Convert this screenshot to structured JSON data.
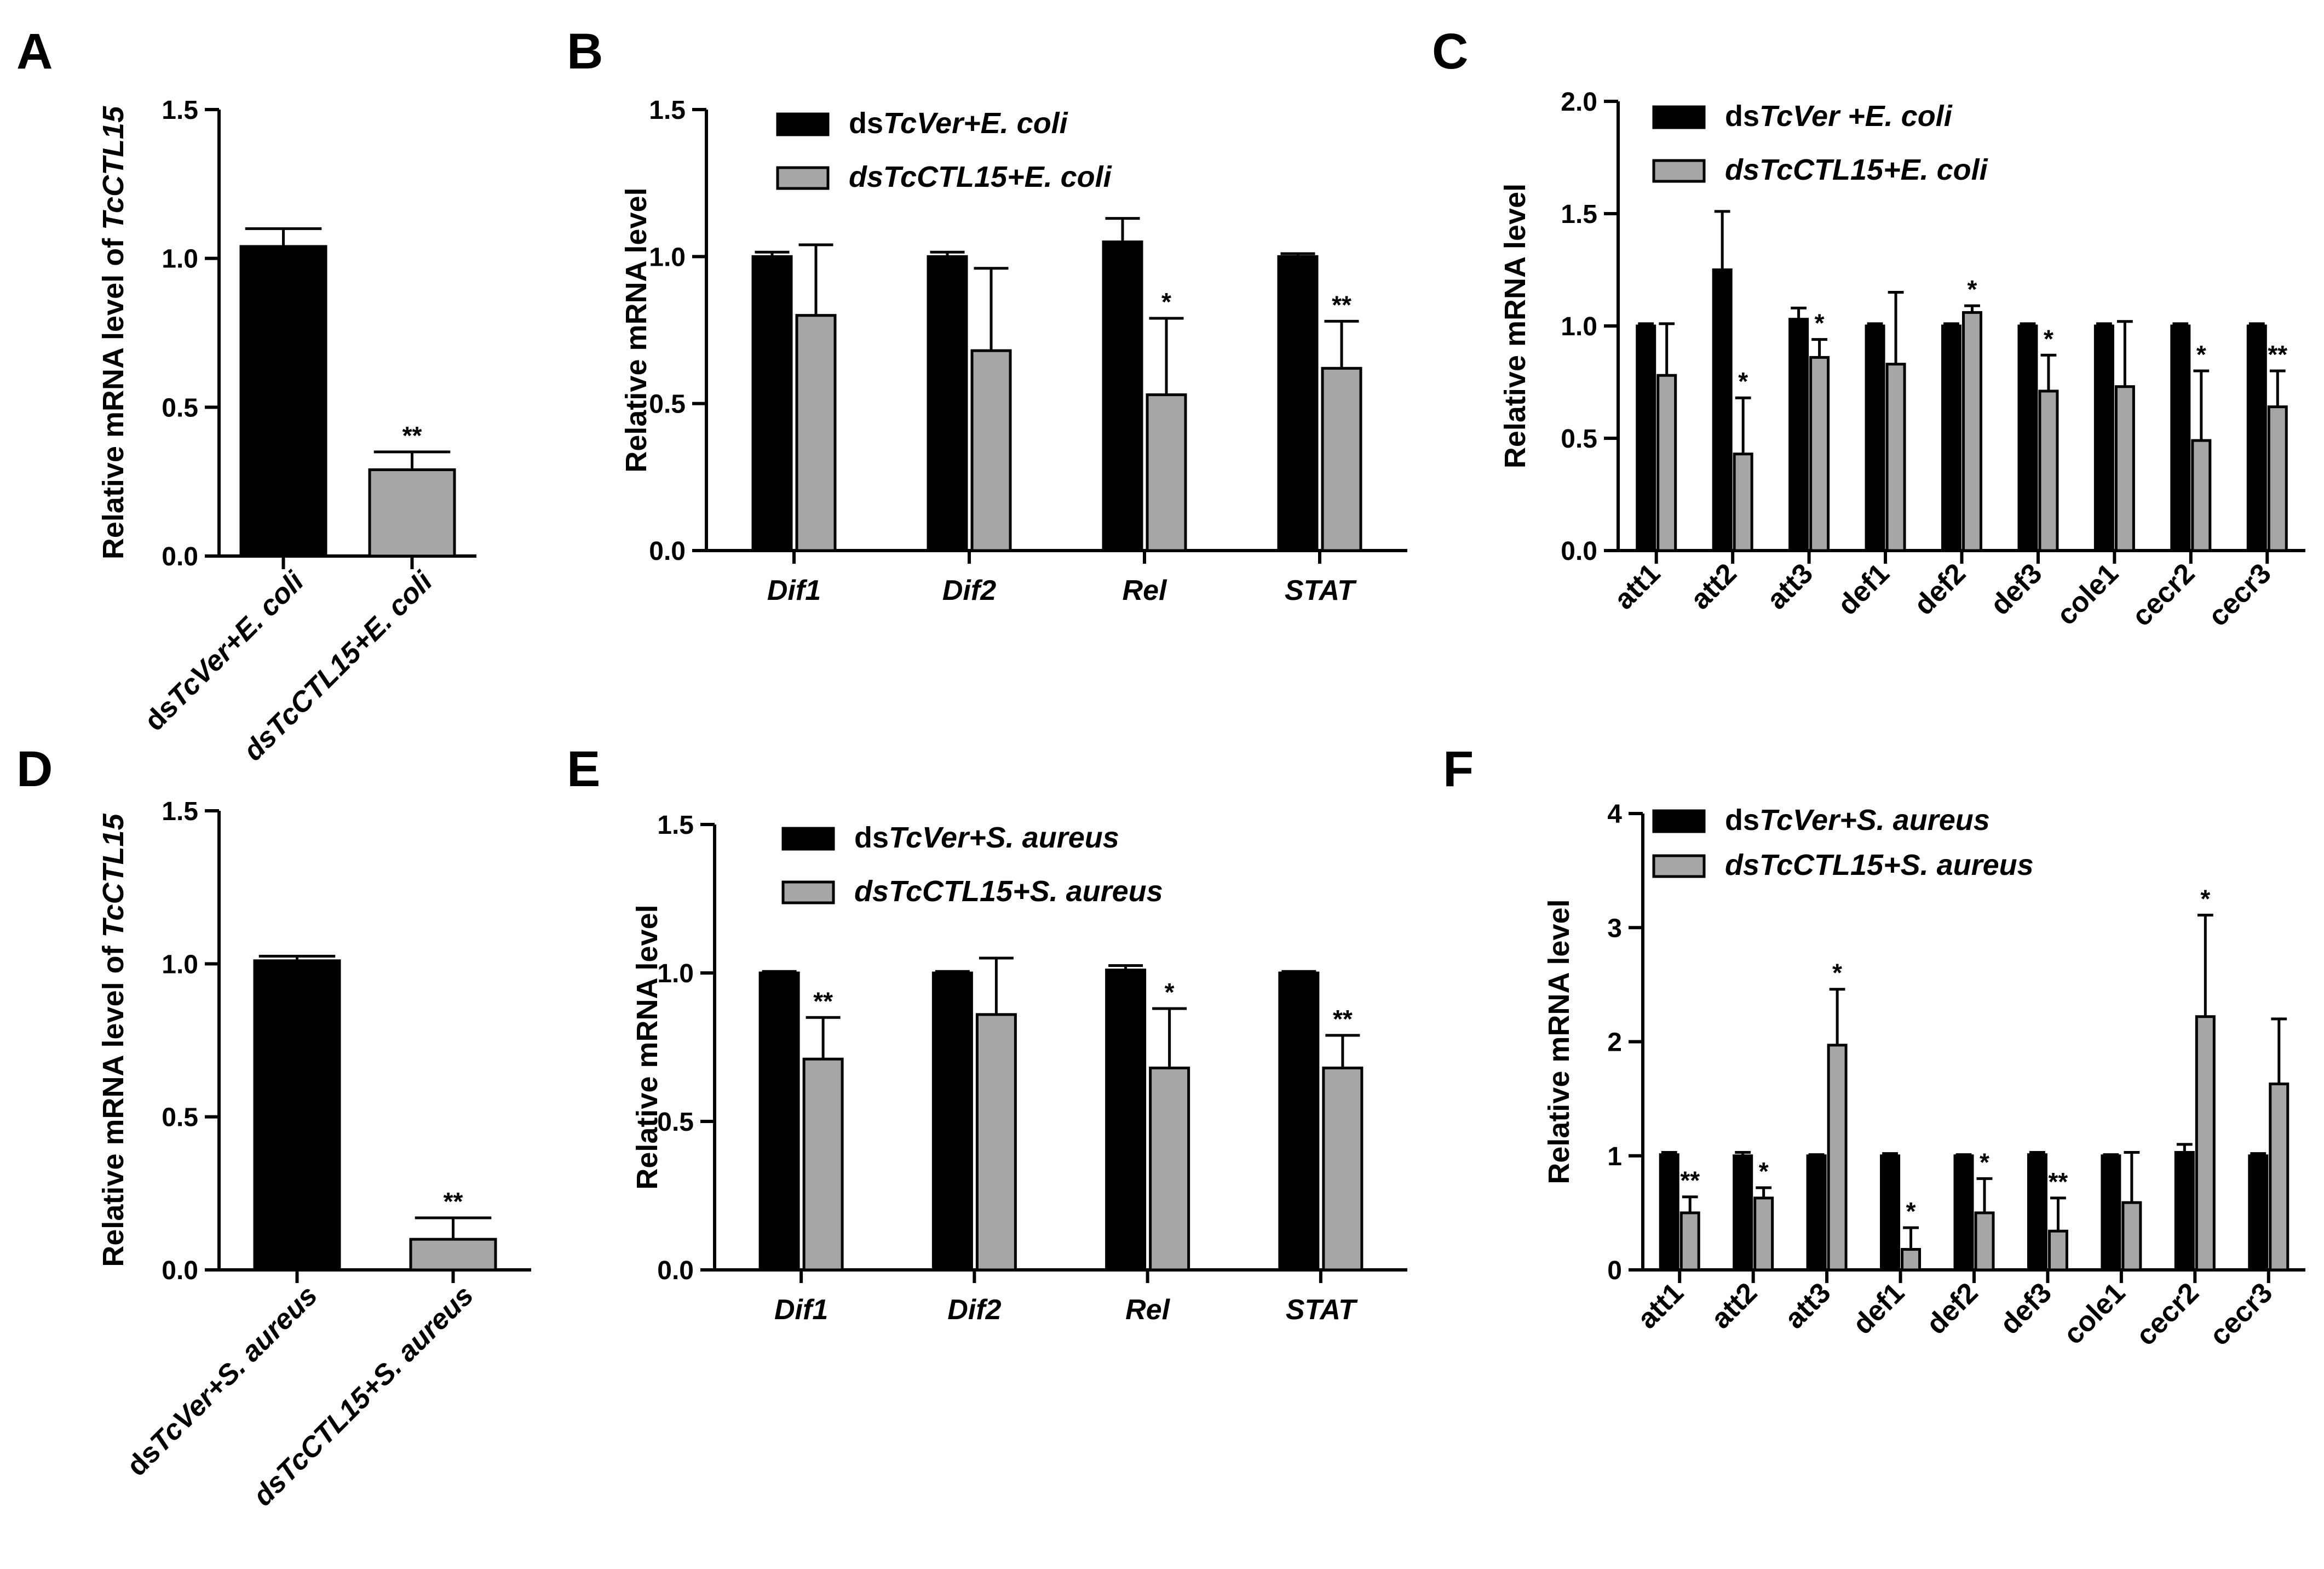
{
  "chart_data": [
    {
      "id": "A",
      "type": "bar",
      "panel_label": "A",
      "ylabel": "Relative mRNA level of ",
      "ylabel_italic": "TcCTL15",
      "ylim": [
        0,
        1.5
      ],
      "yticks": [
        0.0,
        0.5,
        1.0,
        1.5
      ],
      "ytick_labels": [
        "0.0",
        "0.5",
        "1.0",
        "1.5"
      ],
      "categories": [
        "dsTcVer+E. coli",
        "dsTcCTL15+E. coli"
      ],
      "category_parts": [
        [
          {
            "t": "ds",
            "i": false
          },
          {
            "t": "TcVer+E. coli",
            "i": true
          }
        ],
        [
          {
            "t": "dsTcCTL15+E. coli",
            "i": true
          }
        ]
      ],
      "series": [
        {
          "name": "",
          "values": [
            1.04,
            0.29
          ],
          "errors": [
            0.06,
            0.06
          ],
          "colors": [
            "#000000",
            "#a6a6a6"
          ],
          "sig": [
            "",
            "**"
          ]
        }
      ],
      "legend": []
    },
    {
      "id": "B",
      "type": "bar",
      "panel_label": "B",
      "ylabel": "Relative mRNA level",
      "ylim": [
        0,
        1.5
      ],
      "yticks": [
        0.0,
        0.5,
        1.0,
        1.5
      ],
      "ytick_labels": [
        "0.0",
        "0.5",
        "1.0",
        "1.5"
      ],
      "categories": [
        "Dif1",
        "Dif2",
        "Rel",
        "STAT"
      ],
      "series": [
        {
          "name": "dsTcVer+E. coli",
          "color": "#000000",
          "values": [
            1.0,
            1.0,
            1.05,
            1.0
          ],
          "errors": [
            0.015,
            0.015,
            0.08,
            0.01
          ],
          "sig": [
            "",
            "",
            "",
            ""
          ]
        },
        {
          "name": "dsTcCTL15+E. coli",
          "color": "#a6a6a6",
          "values": [
            0.8,
            0.68,
            0.53,
            0.62
          ],
          "errors": [
            0.24,
            0.28,
            0.26,
            0.16
          ],
          "sig": [
            "",
            "",
            "*",
            "**"
          ]
        }
      ],
      "legend": [
        [
          {
            "t": "ds",
            "i": false
          },
          {
            "t": "TcVer+E. coli",
            "i": true
          }
        ],
        [
          {
            "t": "dsTcCTL15+E. coli",
            "i": true
          }
        ]
      ]
    },
    {
      "id": "C",
      "type": "bar",
      "panel_label": "C",
      "ylabel": "Relative mRNA level",
      "ylim": [
        0,
        2.0
      ],
      "yticks": [
        0.0,
        0.5,
        1.0,
        1.5,
        2.0
      ],
      "ytick_labels": [
        "0.0",
        "0.5",
        "1.0",
        "1.5",
        "2.0"
      ],
      "categories": [
        "att1",
        "att2",
        "att3",
        "def1",
        "def2",
        "def3",
        "cole1",
        "cecr2",
        "cecr3"
      ],
      "series": [
        {
          "name": "dsTcVer +E. coli",
          "color": "#000000",
          "values": [
            1.0,
            1.25,
            1.03,
            1.0,
            1.0,
            1.0,
            1.0,
            1.0,
            1.0
          ],
          "errors": [
            0.01,
            0.26,
            0.05,
            0.01,
            0.01,
            0.01,
            0.01,
            0.01,
            0.01
          ],
          "sig": [
            "",
            "",
            "",
            "",
            "",
            "",
            "",
            "",
            ""
          ]
        },
        {
          "name": "dsTcCTL15+E. coli",
          "color": "#a6a6a6",
          "values": [
            0.78,
            0.43,
            0.86,
            0.83,
            1.06,
            0.71,
            0.73,
            0.49,
            0.64
          ],
          "errors": [
            0.23,
            0.25,
            0.08,
            0.32,
            0.03,
            0.16,
            0.29,
            0.31,
            0.16
          ],
          "sig": [
            "",
            "*",
            "*",
            "",
            "*",
            "*",
            "",
            "*",
            "**"
          ]
        }
      ],
      "legend": [
        [
          {
            "t": "ds",
            "i": false
          },
          {
            "t": "TcVer +E. coli",
            "i": true
          }
        ],
        [
          {
            "t": "dsTcCTL15+E. coli",
            "i": true
          }
        ]
      ]
    },
    {
      "id": "D",
      "type": "bar",
      "panel_label": "D",
      "ylabel": "Relative mRNA level of ",
      "ylabel_italic": "TcCTL15",
      "ylim": [
        0,
        1.5
      ],
      "yticks": [
        0.0,
        0.5,
        1.0,
        1.5
      ],
      "ytick_labels": [
        "0.0",
        "0.5",
        "1.0",
        "1.5"
      ],
      "categories": [
        "dsTcVer+S. aureus",
        "dsTcCTL15+S. aureus"
      ],
      "category_parts": [
        [
          {
            "t": "ds",
            "i": false
          },
          {
            "t": "TcVer+S. aureus",
            "i": true
          }
        ],
        [
          {
            "t": "dsTcCTL15+S. aureus",
            "i": true
          }
        ]
      ],
      "series": [
        {
          "name": "",
          "values": [
            1.01,
            0.1
          ],
          "errors": [
            0.015,
            0.07
          ],
          "colors": [
            "#000000",
            "#a6a6a6"
          ],
          "sig": [
            "",
            "**"
          ]
        }
      ],
      "legend": []
    },
    {
      "id": "E",
      "type": "bar",
      "panel_label": "E",
      "ylabel": "Relative mRNA level",
      "ylim": [
        0,
        1.5
      ],
      "yticks": [
        0.0,
        0.5,
        1.0,
        1.5
      ],
      "ytick_labels": [
        "0.0",
        "0.5",
        "1.0",
        "1.5"
      ],
      "categories": [
        "Dif1",
        "Dif2",
        "Rel",
        "STAT"
      ],
      "series": [
        {
          "name": "dsTcVer+S. aureus",
          "color": "#000000",
          "values": [
            1.0,
            1.0,
            1.01,
            1.0
          ],
          "errors": [
            0.005,
            0.005,
            0.015,
            0.005
          ],
          "sig": [
            "",
            "",
            "",
            ""
          ]
        },
        {
          "name": "dsTcCTL15+S. aureus",
          "color": "#a6a6a6",
          "values": [
            0.71,
            0.86,
            0.68,
            0.68
          ],
          "errors": [
            0.14,
            0.19,
            0.2,
            0.11
          ],
          "sig": [
            "**",
            "",
            "*",
            "**"
          ]
        }
      ],
      "legend": [
        [
          {
            "t": "ds",
            "i": false
          },
          {
            "t": "TcVer+S. aureus",
            "i": true
          }
        ],
        [
          {
            "t": "dsTcCTL15+S. aureus",
            "i": true
          }
        ]
      ]
    },
    {
      "id": "F",
      "type": "bar",
      "panel_label": "F",
      "ylabel": "Relative mRNA level",
      "ylim": [
        0,
        4
      ],
      "yticks": [
        0,
        1,
        2,
        3,
        4
      ],
      "ytick_labels": [
        "0",
        "1",
        "2",
        "3",
        "4"
      ],
      "categories": [
        "att1",
        "att2",
        "att3",
        "def1",
        "def2",
        "def3",
        "cole1",
        "cecr2",
        "cecr3"
      ],
      "series": [
        {
          "name": "dsTcVer+S. aureus",
          "color": "#000000",
          "values": [
            1.01,
            1.0,
            1.0,
            1.0,
            1.0,
            1.01,
            1.0,
            1.03,
            1.0
          ],
          "errors": [
            0.02,
            0.03,
            0.01,
            0.02,
            0.01,
            0.02,
            0.01,
            0.07,
            0.02
          ],
          "sig": [
            "",
            "",
            "",
            "",
            "",
            "",
            "",
            "",
            ""
          ]
        },
        {
          "name": "dsTcCTL15+S. aureus",
          "color": "#a6a6a6",
          "values": [
            0.5,
            0.63,
            1.97,
            0.18,
            0.5,
            0.34,
            0.59,
            2.22,
            1.63
          ],
          "errors": [
            0.14,
            0.09,
            0.49,
            0.19,
            0.3,
            0.29,
            0.44,
            0.89,
            0.57
          ],
          "sig": [
            "**",
            "*",
            "*",
            "*",
            "*",
            "**",
            "",
            "*",
            ""
          ]
        }
      ],
      "legend": [
        [
          {
            "t": "ds",
            "i": false
          },
          {
            "t": "TcVer+S. aureus",
            "i": true
          }
        ],
        [
          {
            "t": "dsTcCTL15+S. aureus",
            "i": true
          }
        ]
      ]
    }
  ]
}
